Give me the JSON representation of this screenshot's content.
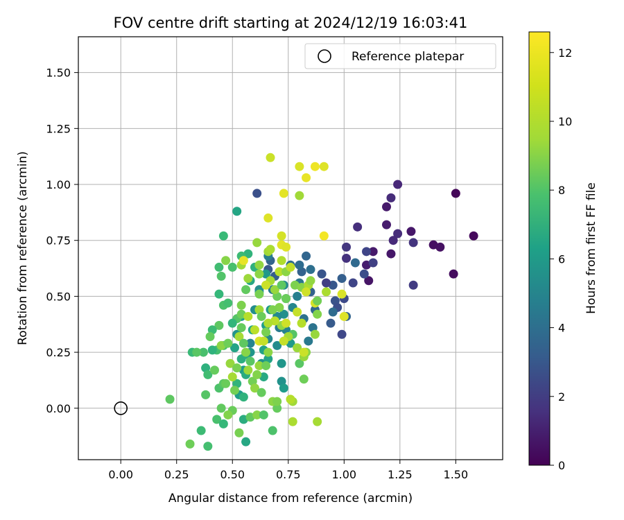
{
  "chart_data": {
    "type": "scatter",
    "title": "FOV centre drift starting at 2024/12/19 16:03:41",
    "xlabel": "Angular distance from reference (arcmin)",
    "ylabel": "Rotation from reference (arcmin)",
    "xlim": [
      -0.19,
      1.71
    ],
    "ylim": [
      -0.23,
      1.66
    ],
    "xticks": [
      "0.00",
      "0.25",
      "0.50",
      "0.75",
      "1.00",
      "1.25",
      "1.50"
    ],
    "yticks": [
      "0.00",
      "0.25",
      "0.50",
      "0.75",
      "1.00",
      "1.25",
      "1.50"
    ],
    "grid": true,
    "legend": {
      "placement": "top-right",
      "entries": [
        "Reference platepar"
      ]
    },
    "reference_point": {
      "x": 0.0,
      "y": 0.0
    },
    "colorbar": {
      "label": "Hours from first FF file",
      "range": [
        0,
        12.6
      ],
      "ticks": [
        "0",
        "2",
        "4",
        "6",
        "8",
        "10",
        "12"
      ],
      "colormap": "viridis"
    },
    "columns": [
      "x",
      "y",
      "hours"
    ],
    "points": [
      [
        1.5,
        0.96,
        0.2
      ],
      [
        1.58,
        0.77,
        0.3
      ],
      [
        1.49,
        0.6,
        0.4
      ],
      [
        1.43,
        0.72,
        0.6
      ],
      [
        1.4,
        0.73,
        0.5
      ],
      [
        1.3,
        0.79,
        0.8
      ],
      [
        1.24,
        1.0,
        1.4
      ],
      [
        1.21,
        0.94,
        1.6
      ],
      [
        1.19,
        0.9,
        0.9
      ],
      [
        1.19,
        0.82,
        1.0
      ],
      [
        1.24,
        0.78,
        1.6
      ],
      [
        1.22,
        0.75,
        1.5
      ],
      [
        1.21,
        0.69,
        0.8
      ],
      [
        1.31,
        0.74,
        1.9
      ],
      [
        1.31,
        0.55,
        2.2
      ],
      [
        1.13,
        0.7,
        0.9
      ],
      [
        1.1,
        0.7,
        2.6
      ],
      [
        1.1,
        0.64,
        1.0
      ],
      [
        1.11,
        0.57,
        0.7
      ],
      [
        1.13,
        0.65,
        2.4
      ],
      [
        1.09,
        0.6,
        3.0
      ],
      [
        1.06,
        0.81,
        1.7
      ],
      [
        1.05,
        0.65,
        4.3
      ],
      [
        1.04,
        0.56,
        2.6
      ],
      [
        1.01,
        0.72,
        2.0
      ],
      [
        1.01,
        0.67,
        1.8
      ],
      [
        0.99,
        0.58,
        3.8
      ],
      [
        0.95,
        0.55,
        3.4
      ],
      [
        0.96,
        0.48,
        3.2
      ],
      [
        0.97,
        0.45,
        3.0
      ],
      [
        1.0,
        0.49,
        2.8
      ],
      [
        1.01,
        0.41,
        4.0
      ],
      [
        0.99,
        0.33,
        2.7
      ],
      [
        0.95,
        0.43,
        4.4
      ],
      [
        0.94,
        0.38,
        3.6
      ],
      [
        0.92,
        0.56,
        2.3
      ],
      [
        0.9,
        0.6,
        3.3
      ],
      [
        0.85,
        0.52,
        3.9
      ],
      [
        0.85,
        0.62,
        4.6
      ],
      [
        0.87,
        0.44,
        4.2
      ],
      [
        0.86,
        0.36,
        4.8
      ],
      [
        0.84,
        0.3,
        5.1
      ],
      [
        0.82,
        0.4,
        4.7
      ],
      [
        0.8,
        0.56,
        5.0
      ],
      [
        0.79,
        0.5,
        5.5
      ],
      [
        0.77,
        0.45,
        5.8
      ],
      [
        0.76,
        0.64,
        4.5
      ],
      [
        0.73,
        0.55,
        6.0
      ],
      [
        0.74,
        0.49,
        5.6
      ],
      [
        0.73,
        0.42,
        6.3
      ],
      [
        0.71,
        0.36,
        5.2
      ],
      [
        0.7,
        0.28,
        6.1
      ],
      [
        0.72,
        0.2,
        6.6
      ],
      [
        0.68,
        0.53,
        5.3
      ],
      [
        0.67,
        0.44,
        6.8
      ],
      [
        0.65,
        0.37,
        7.0
      ],
      [
        0.66,
        0.31,
        5.9
      ],
      [
        0.64,
        0.26,
        7.2
      ],
      [
        0.63,
        0.2,
        6.4
      ],
      [
        0.62,
        0.52,
        7.4
      ],
      [
        0.6,
        0.44,
        6.2
      ],
      [
        0.59,
        0.35,
        7.6
      ],
      [
        0.58,
        0.29,
        5.7
      ],
      [
        0.56,
        0.24,
        7.8
      ],
      [
        0.55,
        0.17,
        6.9
      ],
      [
        0.54,
        0.41,
        7.1
      ],
      [
        0.52,
        0.33,
        6.5
      ],
      [
        0.51,
        0.27,
        7.3
      ],
      [
        0.61,
        0.96,
        3.1
      ],
      [
        0.67,
        0.66,
        4.0
      ],
      [
        0.66,
        0.62,
        3.5
      ],
      [
        0.69,
        0.59,
        3.7
      ],
      [
        0.81,
        0.61,
        3.9
      ],
      [
        0.83,
        0.68,
        4.1
      ],
      [
        0.8,
        0.64,
        4.4
      ],
      [
        0.66,
        0.68,
        5.4
      ],
      [
        0.65,
        0.6,
        6.7
      ],
      [
        0.62,
        0.53,
        6.2
      ],
      [
        0.7,
        0.41,
        6.0
      ],
      [
        0.74,
        0.35,
        5.6
      ],
      [
        0.76,
        0.29,
        6.8
      ],
      [
        0.72,
        0.12,
        6.4
      ],
      [
        0.73,
        0.09,
        6.9
      ],
      [
        0.66,
        0.22,
        7.3
      ],
      [
        0.64,
        0.14,
        7.6
      ],
      [
        0.58,
        0.25,
        6.6
      ],
      [
        0.56,
        0.15,
        7.7
      ],
      [
        0.54,
        0.22,
        7.9
      ],
      [
        0.52,
        0.11,
        8.2
      ],
      [
        0.53,
        0.06,
        7.0
      ],
      [
        0.55,
        0.05,
        8.1
      ],
      [
        0.56,
        -0.15,
        7.5
      ],
      [
        0.55,
        -0.05,
        7.8
      ],
      [
        0.52,
        0.88,
        7.4
      ],
      [
        0.46,
        0.77,
        8.5
      ],
      [
        0.57,
        0.69,
        8.2
      ],
      [
        0.54,
        0.68,
        8.6
      ],
      [
        0.6,
        0.63,
        8.0
      ],
      [
        0.58,
        0.57,
        7.5
      ],
      [
        0.5,
        0.63,
        8.9
      ],
      [
        0.44,
        0.63,
        8.7
      ],
      [
        0.45,
        0.59,
        9.1
      ],
      [
        0.44,
        0.51,
        8.4
      ],
      [
        0.46,
        0.46,
        9.0
      ],
      [
        0.48,
        0.47,
        8.8
      ],
      [
        0.52,
        0.4,
        9.2
      ],
      [
        0.5,
        0.38,
        8.3
      ],
      [
        0.44,
        0.37,
        9.4
      ],
      [
        0.41,
        0.35,
        8.6
      ],
      [
        0.4,
        0.32,
        9.6
      ],
      [
        0.43,
        0.26,
        8.8
      ],
      [
        0.46,
        0.28,
        9.0
      ],
      [
        0.41,
        0.26,
        8.1
      ],
      [
        0.37,
        0.25,
        8.9
      ],
      [
        0.32,
        0.25,
        8.5
      ],
      [
        0.34,
        0.25,
        9.3
      ],
      [
        0.38,
        0.18,
        8.0
      ],
      [
        0.39,
        0.15,
        8.7
      ],
      [
        0.42,
        0.17,
        9.6
      ],
      [
        0.44,
        0.09,
        9.0
      ],
      [
        0.46,
        0.11,
        9.3
      ],
      [
        0.45,
        0.0,
        9.5
      ],
      [
        0.43,
        -0.05,
        8.9
      ],
      [
        0.46,
        -0.07,
        8.4
      ],
      [
        0.38,
        0.06,
        9.2
      ],
      [
        0.36,
        -0.1,
        8.6
      ],
      [
        0.31,
        -0.16,
        9.8
      ],
      [
        0.39,
        -0.17,
        8.8
      ],
      [
        0.22,
        0.04,
        9.4
      ],
      [
        0.51,
        0.08,
        9.9
      ],
      [
        0.5,
        -0.01,
        9.7
      ],
      [
        0.48,
        -0.03,
        10.2
      ],
      [
        0.53,
        -0.11,
        10.0
      ],
      [
        0.58,
        -0.04,
        9.5
      ],
      [
        0.61,
        -0.03,
        10.3
      ],
      [
        0.64,
        -0.03,
        9.1
      ],
      [
        0.68,
        -0.1,
        9.0
      ],
      [
        0.7,
        0.0,
        9.6
      ],
      [
        0.68,
        0.03,
        10.4
      ],
      [
        0.7,
        0.03,
        10.1
      ],
      [
        0.77,
        0.03,
        10.8
      ],
      [
        0.77,
        -0.06,
        11.0
      ],
      [
        0.88,
        -0.06,
        10.9
      ],
      [
        0.76,
        0.04,
        11.2
      ],
      [
        0.82,
        0.13,
        9.8
      ],
      [
        0.8,
        0.2,
        9.3
      ],
      [
        0.82,
        0.23,
        10.6
      ],
      [
        0.79,
        0.27,
        10.7
      ],
      [
        0.77,
        0.33,
        9.2
      ],
      [
        0.75,
        0.32,
        10.9
      ],
      [
        0.73,
        0.3,
        11.5
      ],
      [
        0.72,
        0.37,
        10.5
      ],
      [
        0.69,
        0.39,
        11.3
      ],
      [
        0.71,
        0.45,
        10.2
      ],
      [
        0.7,
        0.5,
        9.7
      ],
      [
        0.69,
        0.53,
        10.6
      ],
      [
        0.72,
        0.55,
        9.4
      ],
      [
        0.71,
        0.61,
        11.3
      ],
      [
        0.67,
        0.57,
        10.9
      ],
      [
        0.65,
        0.55,
        11.6
      ],
      [
        0.62,
        0.51,
        10.0
      ],
      [
        0.62,
        0.44,
        10.8
      ],
      [
        0.62,
        0.64,
        10.5
      ],
      [
        0.62,
        0.6,
        10.4
      ],
      [
        0.57,
        0.58,
        10.7
      ],
      [
        0.56,
        0.53,
        9.5
      ],
      [
        0.54,
        0.46,
        10.1
      ],
      [
        0.54,
        0.42,
        9.8
      ],
      [
        0.54,
        0.36,
        9.6
      ],
      [
        0.53,
        0.32,
        10.9
      ],
      [
        0.55,
        0.29,
        9.4
      ],
      [
        0.56,
        0.25,
        10.3
      ],
      [
        0.58,
        0.21,
        9.3
      ],
      [
        0.57,
        0.17,
        10.7
      ],
      [
        0.59,
        0.12,
        9.9
      ],
      [
        0.6,
        0.09,
        10.5
      ],
      [
        0.63,
        0.07,
        9.6
      ],
      [
        0.61,
        0.15,
        10.2
      ],
      [
        0.62,
        0.19,
        10.6
      ],
      [
        0.65,
        0.19,
        9.8
      ],
      [
        0.66,
        0.25,
        10.4
      ],
      [
        0.65,
        0.34,
        10.0
      ],
      [
        0.66,
        0.38,
        11.1
      ],
      [
        0.63,
        0.41,
        9.7
      ],
      [
        0.68,
        0.44,
        10.1
      ],
      [
        0.45,
        0.28,
        10.4
      ],
      [
        0.48,
        0.29,
        9.8
      ],
      [
        0.49,
        0.2,
        10.6
      ],
      [
        0.5,
        0.14,
        10.9
      ],
      [
        0.52,
        0.18,
        10.0
      ],
      [
        0.47,
        0.11,
        9.7
      ],
      [
        0.54,
        0.64,
        10.8
      ],
      [
        0.47,
        0.66,
        10.3
      ],
      [
        0.61,
        0.74,
        10.6
      ],
      [
        0.66,
        0.7,
        10.8
      ],
      [
        0.67,
        0.71,
        11.0
      ],
      [
        0.72,
        0.66,
        11.1
      ],
      [
        0.74,
        0.61,
        10.4
      ],
      [
        0.76,
        0.63,
        11.4
      ],
      [
        0.78,
        0.55,
        10.1
      ],
      [
        0.81,
        0.54,
        10.3
      ],
      [
        0.84,
        0.55,
        11.0
      ],
      [
        0.83,
        0.52,
        11.7
      ],
      [
        0.85,
        0.57,
        10.5
      ],
      [
        0.87,
        0.47,
        11.8
      ],
      [
        0.88,
        0.42,
        10.2
      ],
      [
        0.87,
        0.33,
        10.6
      ],
      [
        0.88,
        0.48,
        9.9
      ],
      [
        0.92,
        0.52,
        11.0
      ],
      [
        0.99,
        0.51,
        11.9
      ],
      [
        1.0,
        0.41,
        12.0
      ],
      [
        0.83,
        0.25,
        10.3
      ],
      [
        0.81,
        0.38,
        11.2
      ],
      [
        0.79,
        0.43,
        11.5
      ],
      [
        0.74,
        0.49,
        9.7
      ],
      [
        0.66,
        0.85,
        12.0
      ],
      [
        0.67,
        1.12,
        11.6
      ],
      [
        0.73,
        0.96,
        12.1
      ],
      [
        0.8,
        1.08,
        11.9
      ],
      [
        0.83,
        1.03,
        12.2
      ],
      [
        0.87,
        1.08,
        12.3
      ],
      [
        0.91,
        1.08,
        12.0
      ],
      [
        0.8,
        0.95,
        10.8
      ],
      [
        0.91,
        0.77,
        12.4
      ],
      [
        0.72,
        0.73,
        12.1
      ],
      [
        0.74,
        0.72,
        12.0
      ],
      [
        0.72,
        0.77,
        11.8
      ],
      [
        0.55,
        0.66,
        12.2
      ],
      [
        0.62,
        0.3,
        11.9
      ],
      [
        0.74,
        0.38,
        11.7
      ],
      [
        0.82,
        0.25,
        11.6
      ],
      [
        0.6,
        0.35,
        11.3
      ],
      [
        0.57,
        0.41,
        11.2
      ],
      [
        0.64,
        0.3,
        11.5
      ]
    ]
  }
}
